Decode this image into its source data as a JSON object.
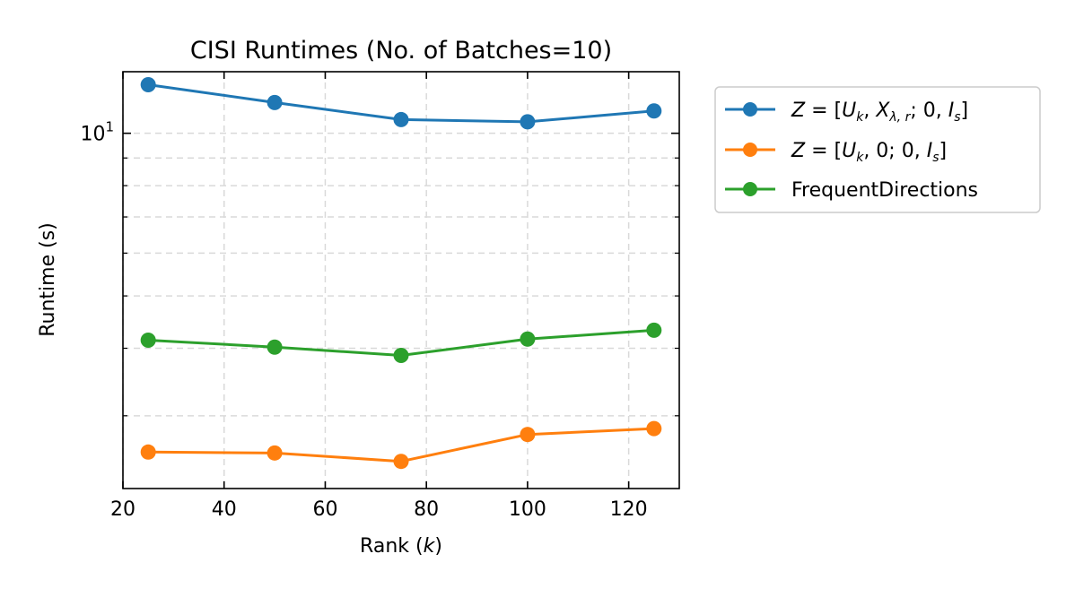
{
  "chart_data": {
    "type": "line",
    "title": "CISI Runtimes (No. of Batches=10)",
    "xlabel": "Rank (k)",
    "ylabel": "Runtime (s)",
    "x": [
      25,
      50,
      75,
      100,
      125
    ],
    "xlim": [
      20,
      130
    ],
    "xticks": [
      20,
      40,
      60,
      80,
      100,
      120
    ],
    "ylim": [
      2.2,
      13.0
    ],
    "yscale": "log",
    "ytick_label": "10^1",
    "yminor_ticks": [
      3,
      4,
      5,
      6,
      7,
      8,
      9
    ],
    "grid": true,
    "legend_position": "outside-right",
    "series": [
      {
        "name": "Z = [U_k, X_{λ,r}; 0, I_s]",
        "color": "#1f77b4",
        "values": [
          12.3,
          11.4,
          10.6,
          10.5,
          11.0
        ]
      },
      {
        "name": "Z = [U_k, 0; 0, I_s]",
        "color": "#ff7f0e",
        "values": [
          2.57,
          2.56,
          2.47,
          2.77,
          2.84
        ]
      },
      {
        "name": "FrequentDirections",
        "color": "#2ca02c",
        "values": [
          4.14,
          4.02,
          3.88,
          4.16,
          4.32
        ]
      }
    ]
  }
}
